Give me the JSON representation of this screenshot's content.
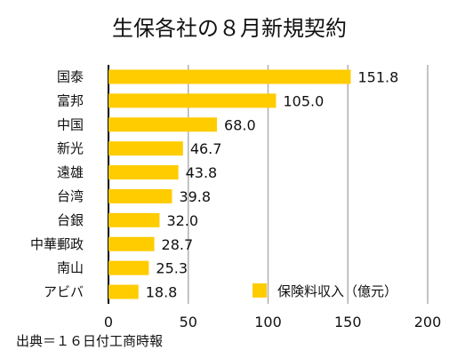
{
  "chart_data": {
    "type": "bar",
    "orientation": "horizontal",
    "title": "生保各社の８月新規契約",
    "categories": [
      "国泰",
      "富邦",
      "中国",
      "新光",
      "遠雄",
      "台湾",
      "台銀",
      "中華郵政",
      "南山",
      "アビバ"
    ],
    "series": [
      {
        "name": "保険料収入（億元）",
        "values": [
          151.8,
          105.0,
          68.0,
          46.7,
          43.8,
          39.8,
          32.0,
          28.7,
          25.3,
          18.8
        ],
        "value_labels": [
          "151.8",
          "105.0",
          "68.0",
          "46.7",
          "43.8",
          "39.8",
          "32.0",
          "28.7",
          "25.3",
          "18.8"
        ],
        "color": "#FFCC00"
      }
    ],
    "xlim": [
      0,
      200
    ],
    "xticks": [
      0,
      50,
      100,
      150,
      200
    ],
    "xtick_labels": [
      "0",
      "50",
      "100",
      "150",
      "200"
    ],
    "grid": true,
    "grid_color": "#B0B0B0",
    "legend_position": "bottom-right",
    "source": "出典＝１６日付工商時報"
  }
}
